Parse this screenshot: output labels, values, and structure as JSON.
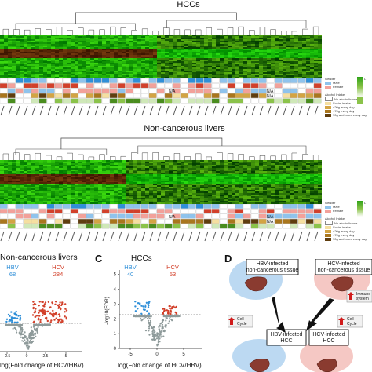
{
  "panel_a": {
    "title": "HCCs",
    "legend_gender": {
      "title": "Gender",
      "items": [
        "Male",
        "Female"
      ]
    },
    "legend_alcohol": {
      "title": "Alcohol Intake",
      "items": [
        "No alcoholic use",
        "Social intake",
        "<20g every day",
        "<70g every day",
        "70g and more every day"
      ]
    },
    "legend_scale": "L",
    "na_labels": [
      "N/A",
      "N/A",
      "N/A"
    ],
    "colors": {
      "green": "#2ea317",
      "red": "#b8141a",
      "blue": "#2f8fd8",
      "orange": "#d2402a",
      "gray": "#8e9a9a"
    }
  },
  "panel_b": {
    "title": "Non-cancerous livers",
    "legend_gender": {
      "title": "Gender",
      "items": [
        "Male",
        "Female"
      ]
    },
    "legend_alcohol": {
      "title": "Alcohol Intake",
      "items": [
        "No alcoholic use",
        "Social intake",
        "<20g every day",
        "<70g every day",
        "70g and more every day"
      ]
    },
    "legend_scale": "L",
    "na_labels": [
      "N/A",
      "N/A",
      "N/A"
    ]
  },
  "panel_volcano_left": {
    "title": "Non-cancerous livers",
    "hbv_label": "HBV",
    "hbv_count": "68",
    "hcv_label": "HCV",
    "hcv_count": "284",
    "xlabel": "log(Fold change of HCV/HBV)",
    "x_ticks": [
      "-2.5",
      "0",
      "2.5",
      "5"
    ]
  },
  "panel_c": {
    "letter": "C",
    "title": "HCCs",
    "hbv_label": "HBV",
    "hbv_count": "40",
    "hcv_label": "HCV",
    "hcv_count": "53",
    "ylabel": "-log10(FDR)",
    "xlabel": "log(Fold change of HCV/HBV)",
    "x_ticks": [
      "-5",
      "0",
      "5"
    ],
    "y_ticks": [
      "0",
      "1",
      "2",
      "3",
      "4",
      "5"
    ]
  },
  "panel_d": {
    "letter": "D",
    "box_hbv_nc": "HBV-infected\nnon-cancerous tissue",
    "box_hcv_nc": "HCV-infected\nnon-cancerous tissue",
    "box_hbv_hcc": "HBV-infected\nHCC",
    "box_hcv_hcc": "HCV-infected\nHCC",
    "cell_cycle": "Cell\nCycle",
    "immune": "Immune\nsystem"
  },
  "chart_data": [
    {
      "type": "scatter",
      "title": "Non-cancerous livers",
      "xlabel": "log(Fold change of HCV/HBV)",
      "series": [
        {
          "name": "HBV",
          "count": 68
        },
        {
          "name": "HCV",
          "count": 284
        }
      ],
      "x_ticks": [
        -2.5,
        0,
        2.5,
        5
      ]
    },
    {
      "type": "scatter",
      "title": "HCCs",
      "xlabel": "log(Fold change of HCV/HBV)",
      "ylabel": "-log10(FDR)",
      "series": [
        {
          "name": "HBV",
          "count": 40
        },
        {
          "name": "HCV",
          "count": 53
        }
      ],
      "x_ticks": [
        -5,
        0,
        5
      ],
      "y_ticks": [
        0,
        1,
        2,
        3,
        4,
        5
      ],
      "threshold_y": 2
    }
  ]
}
